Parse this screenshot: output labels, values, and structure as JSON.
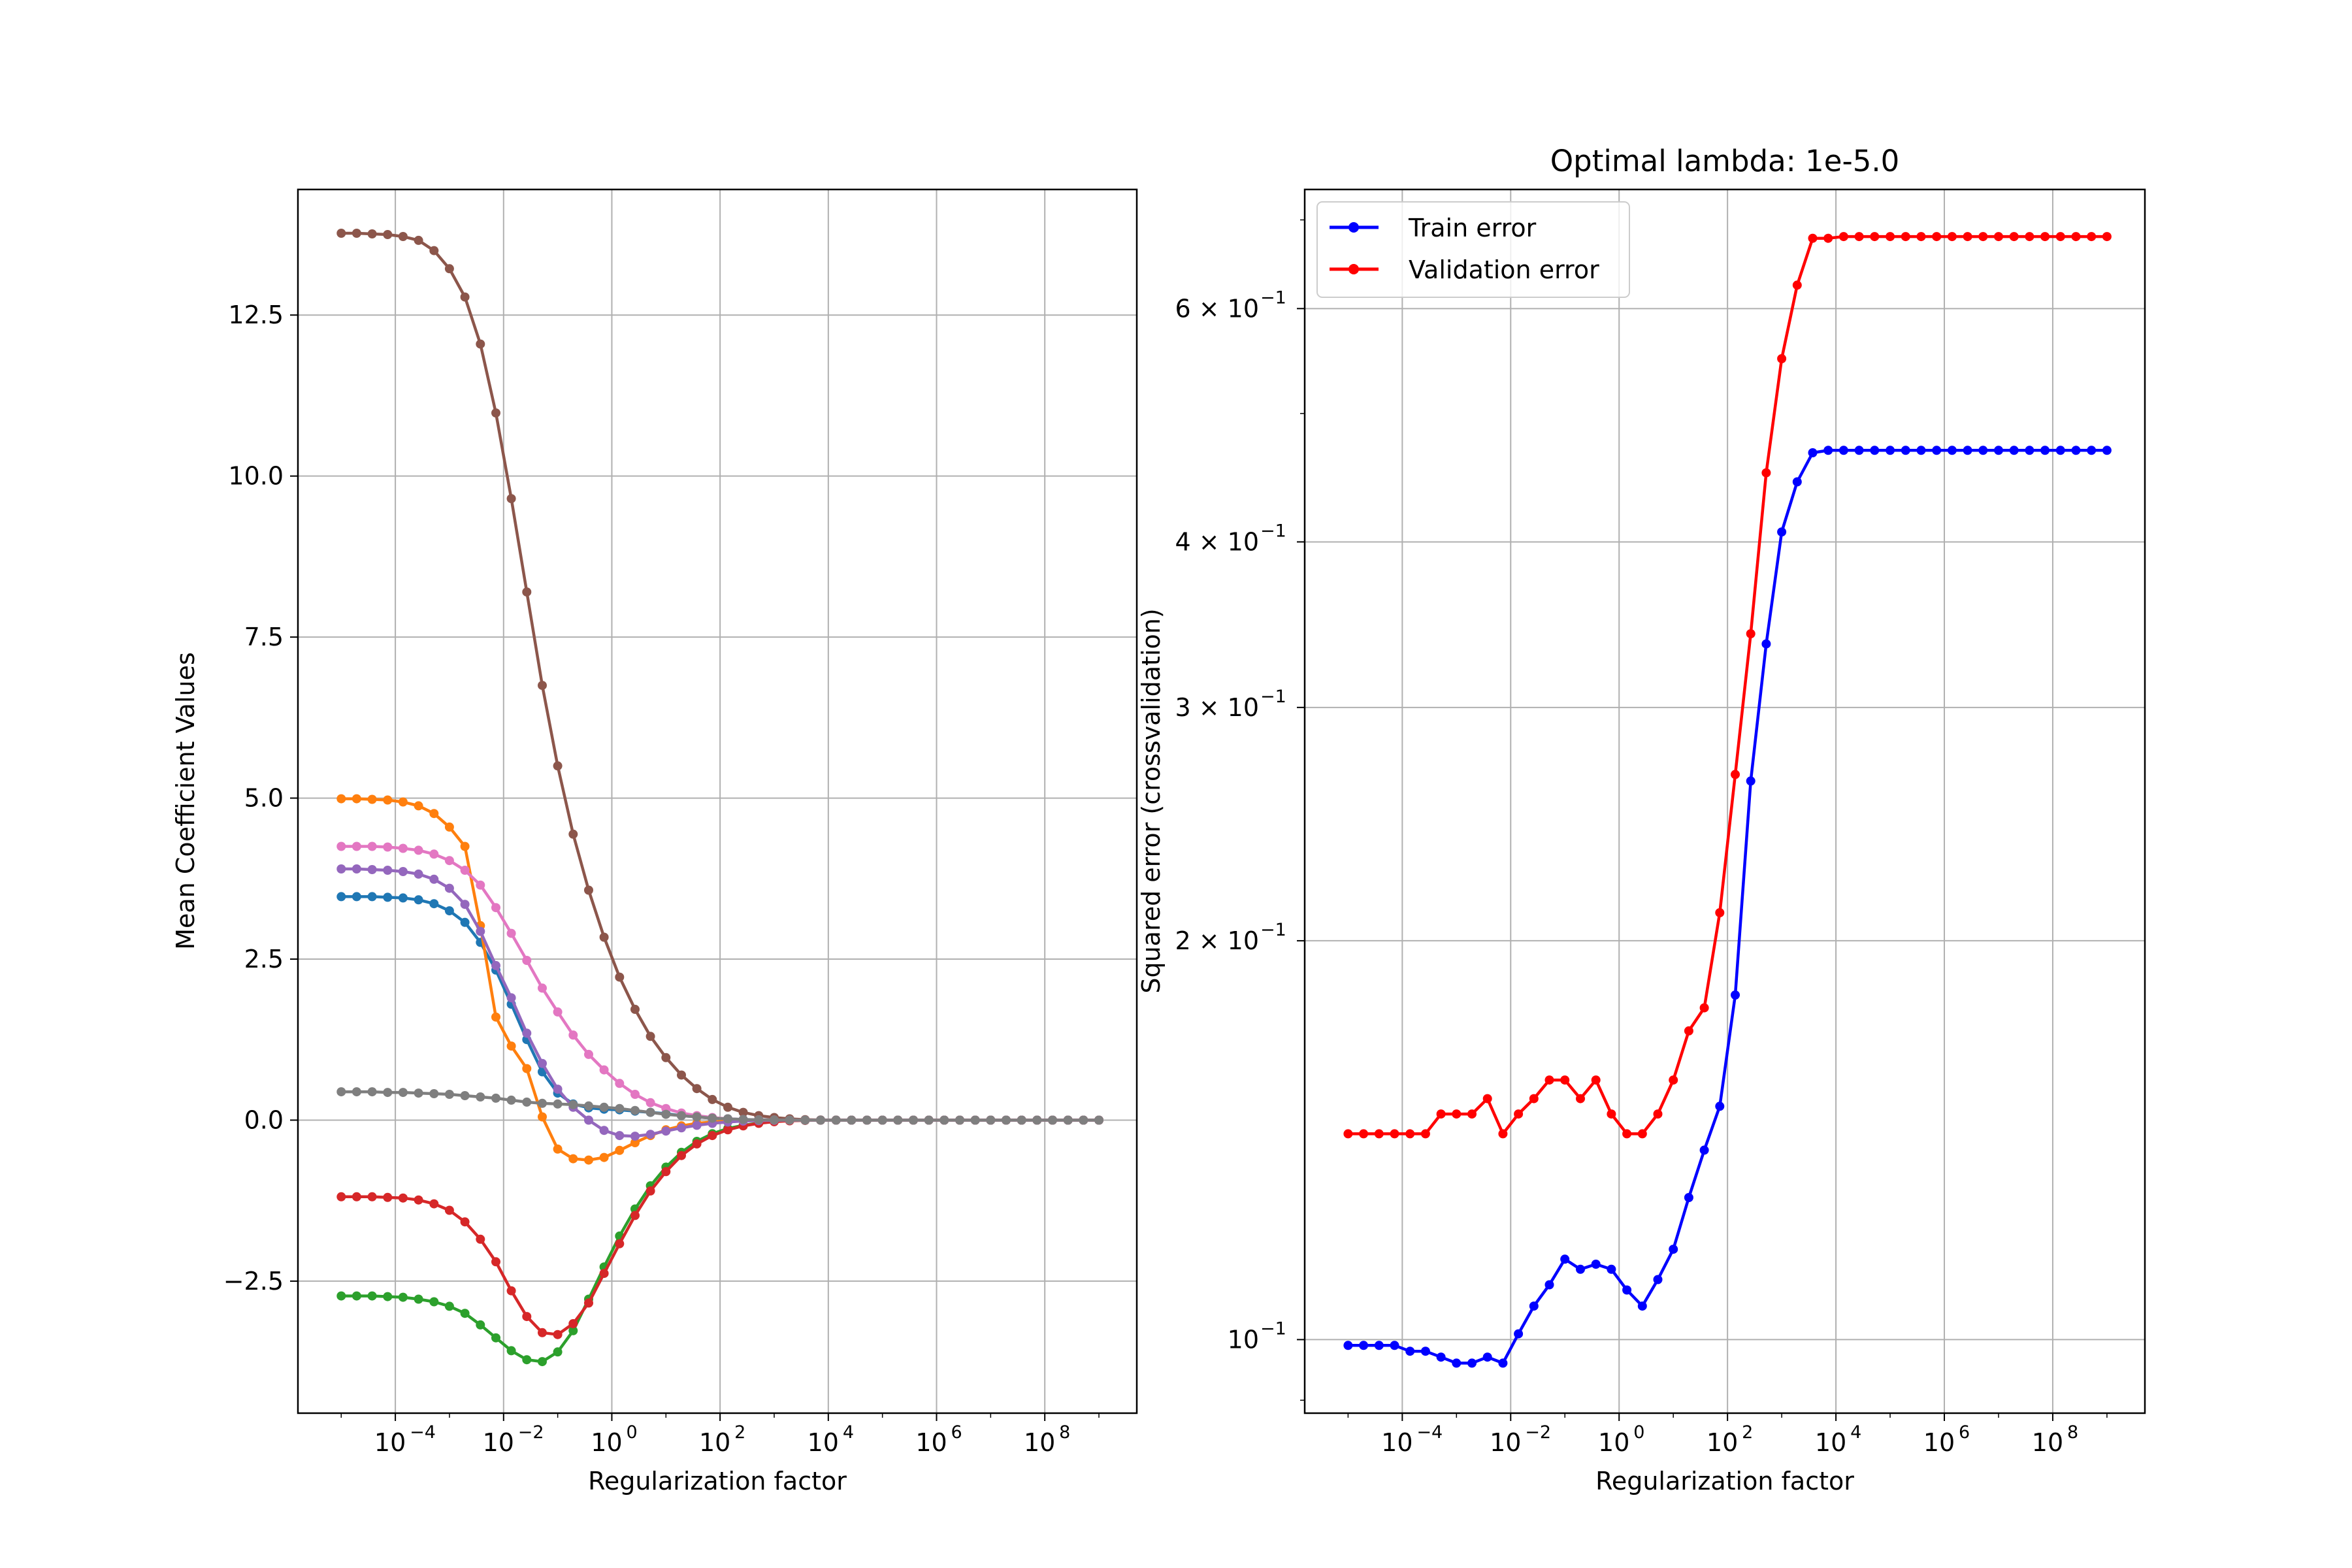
{
  "chart_data": [
    {
      "type": "line",
      "title": "",
      "xlabel": "Regularization factor",
      "ylabel": "Mean Coefficient Values",
      "xscale": "log",
      "xlim_exp": [
        -5.8,
        9.7
      ],
      "ylim": [
        -4.55,
        14.45
      ],
      "grid": true,
      "xticks": [
        {
          "exp": -4,
          "label": "-4"
        },
        {
          "exp": -2,
          "label": "-2"
        },
        {
          "exp": 0,
          "label": "0"
        },
        {
          "exp": 2,
          "label": "2"
        },
        {
          "exp": 4,
          "label": "4"
        },
        {
          "exp": 6,
          "label": "6"
        },
        {
          "exp": 8,
          "label": "8"
        }
      ],
      "yticks": [
        {
          "v": -2.5,
          "label": "−2.5"
        },
        {
          "v": 0,
          "label": "0.0"
        },
        {
          "v": 2.5,
          "label": "2.5"
        },
        {
          "v": 5,
          "label": "5.0"
        },
        {
          "v": 7.5,
          "label": "7.5"
        },
        {
          "v": 10,
          "label": "10.0"
        },
        {
          "v": 12.5,
          "label": "12.5"
        }
      ],
      "x_exponents_range": [
        -5,
        9
      ],
      "n_points": 50,
      "series": [
        {
          "color": "#1f77b4",
          "values": [
            3.47,
            3.47,
            3.47,
            3.46,
            3.45,
            3.42,
            3.36,
            3.25,
            3.07,
            2.76,
            2.33,
            1.8,
            1.25,
            0.75,
            0.42,
            0.25,
            0.19,
            0.17,
            0.16,
            0.14,
            0.12,
            0.1,
            0.07,
            0.05,
            0.03,
            0.02,
            0.01,
            0.005,
            0.002,
            0.001,
            0,
            0,
            0,
            0,
            0,
            0,
            0,
            0,
            0,
            0,
            0,
            0,
            0,
            0,
            0,
            0,
            0,
            0,
            0,
            0
          ]
        },
        {
          "color": "#ff7f0e",
          "values": [
            4.99,
            4.99,
            4.98,
            4.97,
            4.94,
            4.88,
            4.76,
            4.55,
            4.25,
            3.02,
            1.6,
            1.15,
            0.8,
            0.05,
            -0.45,
            -0.6,
            -0.62,
            -0.58,
            -0.47,
            -0.35,
            -0.24,
            -0.15,
            -0.09,
            -0.05,
            -0.03,
            -0.015,
            -0.007,
            -0.003,
            -0.001,
            0,
            0,
            0,
            0,
            0,
            0,
            0,
            0,
            0,
            0,
            0,
            0,
            0,
            0,
            0,
            0,
            0,
            0,
            0,
            0,
            0
          ]
        },
        {
          "color": "#2ca02c",
          "values": [
            -2.73,
            -2.73,
            -2.73,
            -2.74,
            -2.75,
            -2.78,
            -2.82,
            -2.89,
            -3.0,
            -3.18,
            -3.38,
            -3.58,
            -3.72,
            -3.75,
            -3.6,
            -3.27,
            -2.78,
            -2.28,
            -1.8,
            -1.38,
            -1.02,
            -0.73,
            -0.5,
            -0.33,
            -0.21,
            -0.13,
            -0.08,
            -0.045,
            -0.02,
            -0.008,
            -0.003,
            -0.001,
            0,
            0,
            0,
            0,
            0,
            0,
            0,
            0,
            0,
            0,
            0,
            0,
            0,
            0,
            0,
            0,
            0,
            0
          ]
        },
        {
          "color": "#d62728",
          "values": [
            -1.19,
            -1.19,
            -1.19,
            -1.2,
            -1.21,
            -1.24,
            -1.3,
            -1.4,
            -1.58,
            -1.85,
            -2.2,
            -2.65,
            -3.05,
            -3.3,
            -3.33,
            -3.16,
            -2.84,
            -2.38,
            -1.92,
            -1.48,
            -1.1,
            -0.8,
            -0.55,
            -0.37,
            -0.24,
            -0.15,
            -0.09,
            -0.05,
            -0.025,
            -0.01,
            -0.004,
            -0.001,
            0,
            0,
            0,
            0,
            0,
            0,
            0,
            0,
            0,
            0,
            0,
            0,
            0,
            0,
            0,
            0,
            0,
            0
          ]
        },
        {
          "color": "#9467bd",
          "values": [
            3.9,
            3.9,
            3.89,
            3.88,
            3.86,
            3.82,
            3.74,
            3.6,
            3.35,
            2.93,
            2.4,
            1.9,
            1.35,
            0.88,
            0.48,
            0.2,
            0.0,
            -0.16,
            -0.24,
            -0.25,
            -0.22,
            -0.17,
            -0.12,
            -0.08,
            -0.05,
            -0.03,
            -0.015,
            -0.007,
            -0.003,
            -0.001,
            0,
            0,
            0,
            0,
            0,
            0,
            0,
            0,
            0,
            0,
            0,
            0,
            0,
            0,
            0,
            0,
            0,
            0,
            0,
            0
          ]
        },
        {
          "color": "#8c564b",
          "values": [
            13.77,
            13.77,
            13.76,
            13.75,
            13.72,
            13.66,
            13.5,
            13.22,
            12.78,
            12.05,
            10.98,
            9.65,
            8.2,
            6.75,
            5.5,
            4.44,
            3.57,
            2.84,
            2.22,
            1.72,
            1.3,
            0.97,
            0.7,
            0.49,
            0.32,
            0.2,
            0.12,
            0.07,
            0.04,
            0.02,
            0.008,
            0.003,
            0.001,
            0,
            0,
            0,
            0,
            0,
            0,
            0,
            0,
            0,
            0,
            0,
            0,
            0,
            0,
            0,
            0,
            0
          ]
        },
        {
          "color": "#e377c2",
          "values": [
            4.25,
            4.25,
            4.25,
            4.24,
            4.22,
            4.19,
            4.13,
            4.03,
            3.88,
            3.65,
            3.3,
            2.9,
            2.48,
            2.05,
            1.68,
            1.32,
            1.02,
            0.78,
            0.57,
            0.4,
            0.27,
            0.18,
            0.11,
            0.07,
            0.04,
            0.02,
            0.01,
            0.005,
            0.002,
            0.001,
            0,
            0,
            0,
            0,
            0,
            0,
            0,
            0,
            0,
            0,
            0,
            0,
            0,
            0,
            0,
            0,
            0,
            0,
            0,
            0
          ]
        },
        {
          "color": "#7f7f7f",
          "values": [
            0.44,
            0.44,
            0.44,
            0.43,
            0.43,
            0.42,
            0.41,
            0.4,
            0.38,
            0.36,
            0.34,
            0.31,
            0.28,
            0.26,
            0.25,
            0.24,
            0.22,
            0.2,
            0.18,
            0.15,
            0.12,
            0.09,
            0.07,
            0.05,
            0.03,
            0.02,
            0.01,
            0.005,
            0.002,
            0.001,
            0,
            0,
            0,
            0,
            0,
            0,
            0,
            0,
            0,
            0,
            0,
            0,
            0,
            0,
            0,
            0,
            0,
            0,
            0,
            0
          ]
        }
      ]
    },
    {
      "type": "line",
      "title": "Optimal lambda: 1e-5.0",
      "xlabel": "Regularization factor",
      "ylabel": "Squared error (crossvalidation)",
      "xscale": "log",
      "yscale": "log",
      "xlim_exp": [
        -5.8,
        9.7
      ],
      "ylim": [
        0.088,
        0.738
      ],
      "grid": true,
      "legend": "top-left",
      "xticks": [
        {
          "exp": -4,
          "label": "-4"
        },
        {
          "exp": -2,
          "label": "-2"
        },
        {
          "exp": 0,
          "label": "0"
        },
        {
          "exp": 2,
          "label": "2"
        },
        {
          "exp": 4,
          "label": "4"
        },
        {
          "exp": 6,
          "label": "6"
        },
        {
          "exp": 8,
          "label": "8"
        }
      ],
      "yticks": [
        {
          "v": 0.1,
          "mant": "10",
          "exp": "−1"
        },
        {
          "v": 0.2,
          "mant": "2 × 10",
          "exp": "−1"
        },
        {
          "v": 0.3,
          "mant": "3 × 10",
          "exp": "−1"
        },
        {
          "v": 0.4,
          "mant": "4 × 10",
          "exp": "−1"
        },
        {
          "v": 0.6,
          "mant": "6 × 10",
          "exp": "−1"
        }
      ],
      "x_exponents_range": [
        -5,
        9
      ],
      "n_points": 50,
      "series": [
        {
          "name": "Train error",
          "color": "#0000ff",
          "values": [
            0.099,
            0.099,
            0.099,
            0.099,
            0.098,
            0.098,
            0.097,
            0.096,
            0.096,
            0.097,
            0.096,
            0.101,
            0.106,
            0.11,
            0.115,
            0.113,
            0.114,
            0.113,
            0.109,
            0.106,
            0.111,
            0.117,
            0.128,
            0.139,
            0.15,
            0.182,
            0.264,
            0.335,
            0.407,
            0.444,
            0.467,
            0.469,
            0.469,
            0.469,
            0.469,
            0.469,
            0.469,
            0.469,
            0.469,
            0.469,
            0.469,
            0.469,
            0.469,
            0.469,
            0.469,
            0.469,
            0.469,
            0.469,
            0.469,
            0.469
          ]
        },
        {
          "name": "Validation error",
          "color": "#ff0000",
          "values": [
            0.143,
            0.143,
            0.143,
            0.143,
            0.143,
            0.143,
            0.148,
            0.148,
            0.148,
            0.152,
            0.143,
            0.148,
            0.152,
            0.157,
            0.157,
            0.152,
            0.157,
            0.148,
            0.143,
            0.143,
            0.148,
            0.157,
            0.171,
            0.178,
            0.21,
            0.267,
            0.341,
            0.451,
            0.55,
            0.625,
            0.678,
            0.678,
            0.68,
            0.68,
            0.68,
            0.68,
            0.68,
            0.68,
            0.68,
            0.68,
            0.68,
            0.68,
            0.68,
            0.68,
            0.68,
            0.68,
            0.68,
            0.68,
            0.68,
            0.68
          ]
        }
      ]
    }
  ]
}
